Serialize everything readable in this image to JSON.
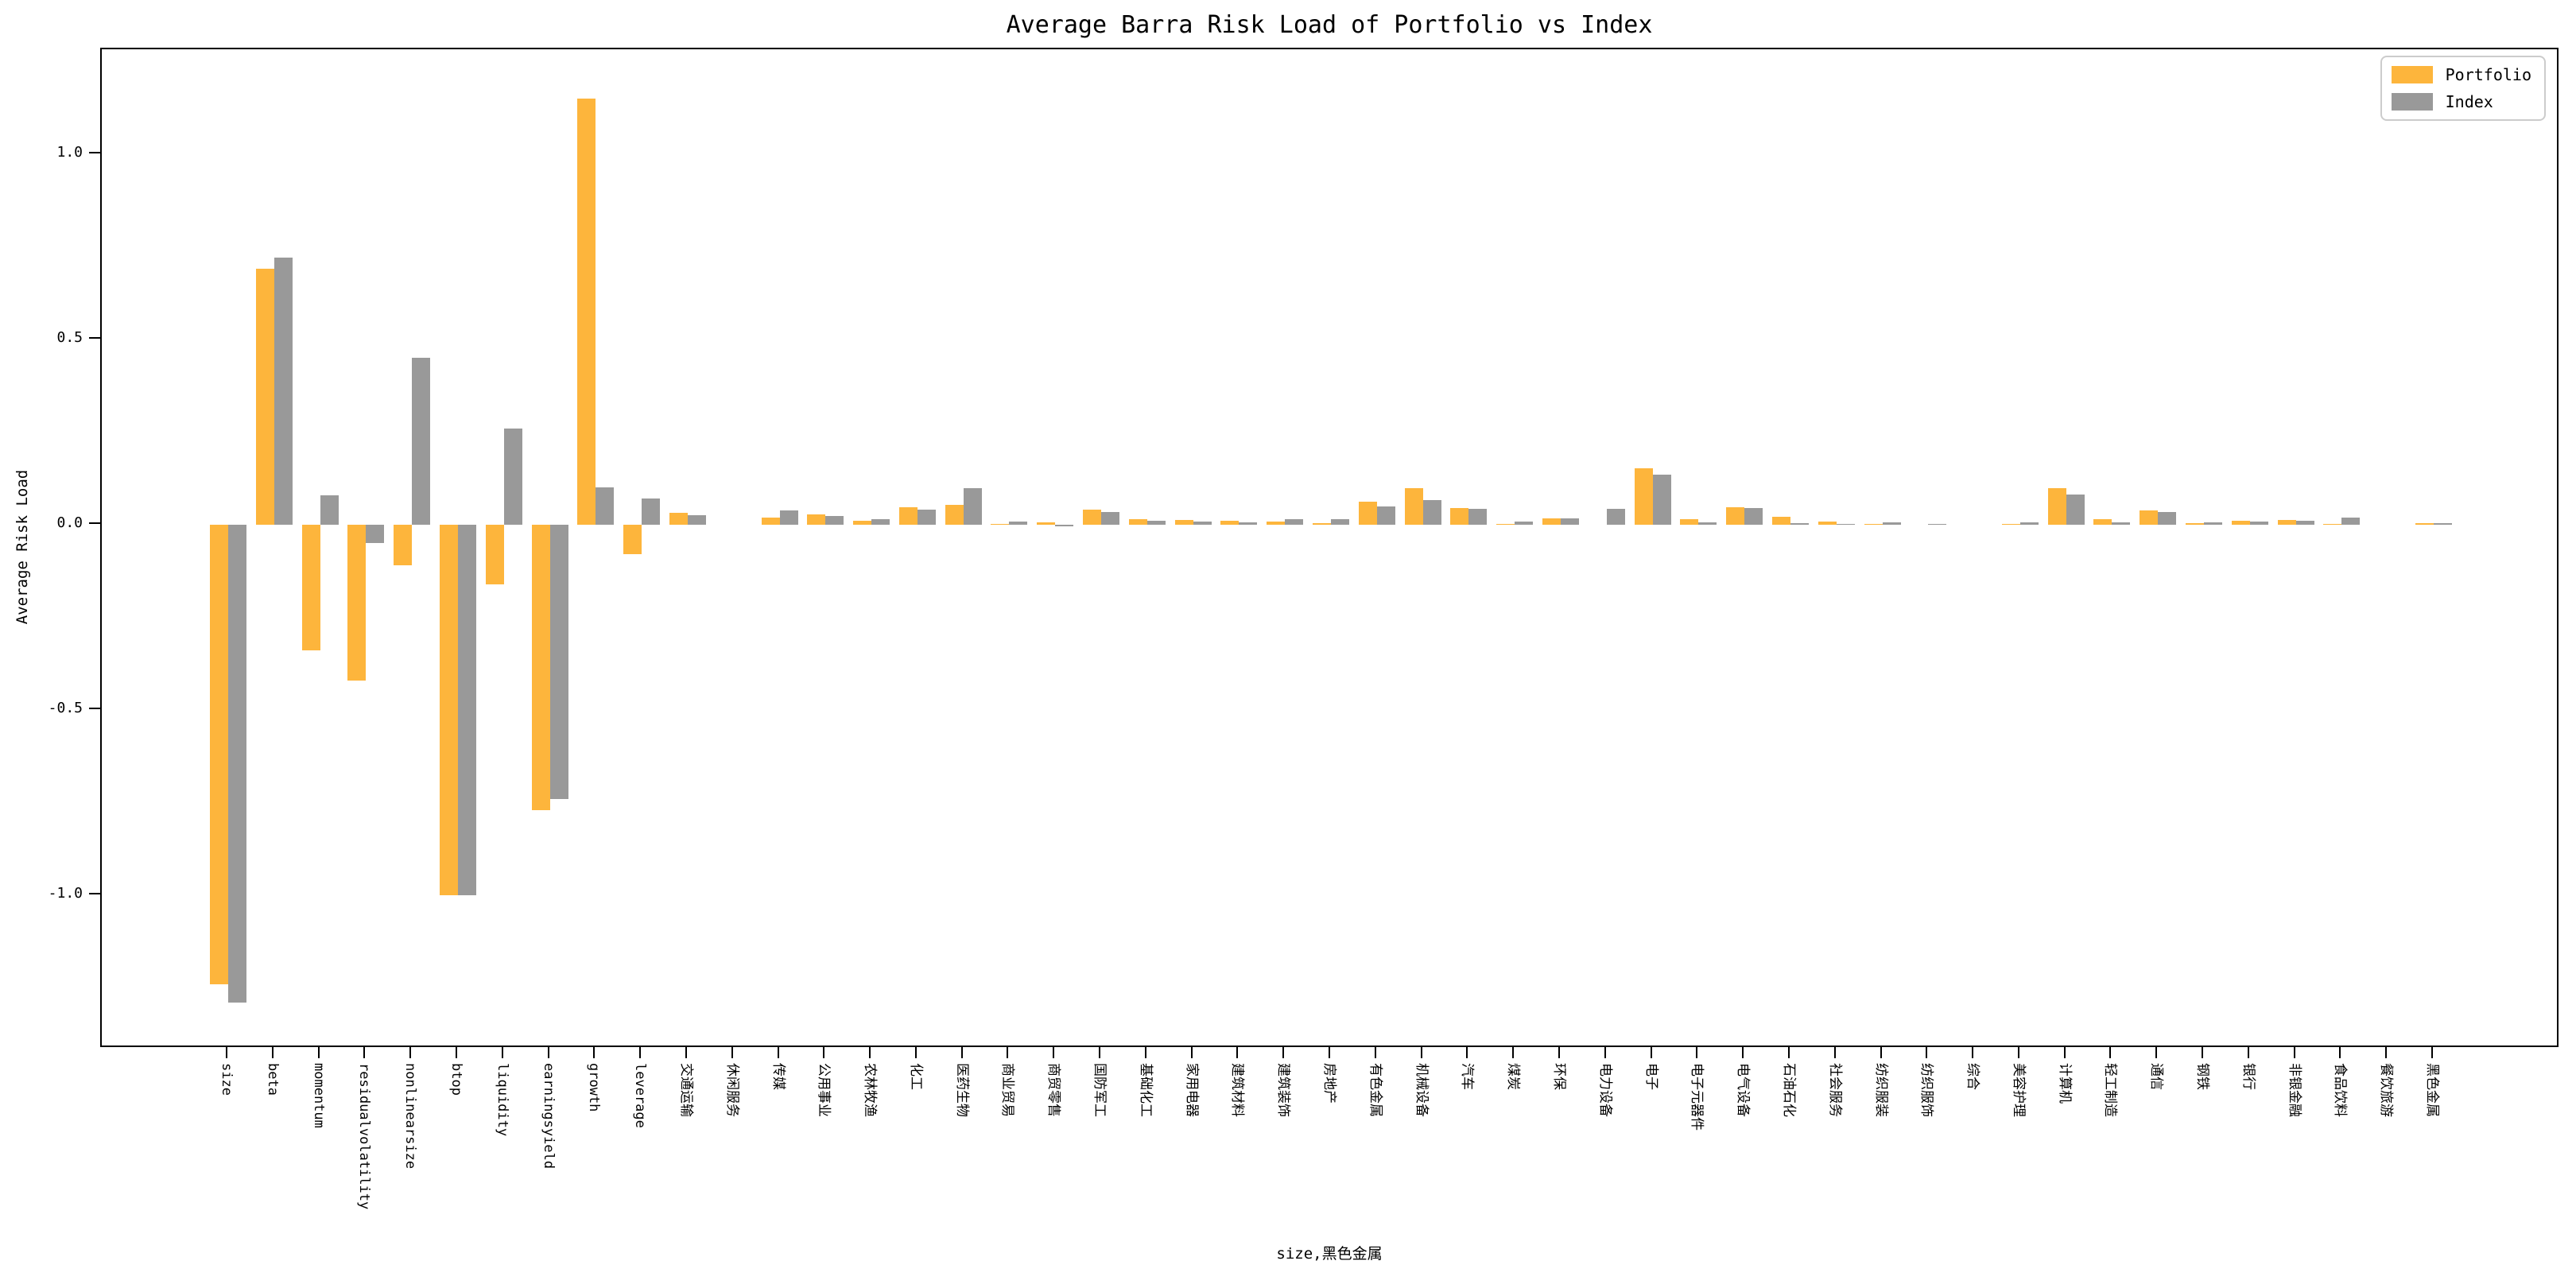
{
  "chart_data": {
    "type": "bar",
    "title": "Average Barra Risk Load of Portfolio vs Index",
    "ylabel": "Average Risk Load",
    "xlabel": "size,黑色金属",
    "ylim": [
      -1.41,
      1.28
    ],
    "yticks": [
      1.0,
      0.5,
      0.0,
      -0.5,
      -1.0
    ],
    "grid": false,
    "legend_position": "upper right",
    "colors": {
      "portfolio": "#FDB53C",
      "index": "#999999",
      "axis": "#000000",
      "legend_border": "#cccccc"
    },
    "categories": [
      "size",
      "beta",
      "momentum",
      "residualvolatility",
      "nonlinearsize",
      "btop",
      "liquidity",
      "earningsyield",
      "growth",
      "leverage",
      "交通运输",
      "休闲服务",
      "传媒",
      "公用事业",
      "农林牧渔",
      "化工",
      "医药生物",
      "商业贸易",
      "商贸零售",
      "国防军工",
      "基础化工",
      "家用电器",
      "建筑材料",
      "建筑装饰",
      "房地产",
      "有色金属",
      "机械设备",
      "汽车",
      "煤炭",
      "环保",
      "电力设备",
      "电子",
      "电子元器件",
      "电气设备",
      "石油石化",
      "社会服务",
      "纺织服装",
      "纺织服饰",
      "综合",
      "美容护理",
      "计算机",
      "轻工制造",
      "通信",
      "钢铁",
      "银行",
      "非银金融",
      "食品饮料",
      "餐饮旅游",
      "黑色金属"
    ],
    "series": [
      {
        "name": "Portfolio",
        "values": [
          -1.24,
          0.69,
          -0.34,
          -0.42,
          -0.11,
          -1.0,
          -0.16,
          -0.77,
          1.15,
          -0.08,
          0.032,
          0.0,
          0.019,
          0.028,
          0.011,
          0.048,
          0.053,
          0.003,
          0.007,
          0.041,
          0.014,
          0.013,
          0.011,
          0.008,
          0.004,
          0.062,
          0.098,
          0.046,
          0.003,
          0.018,
          0.0,
          0.152,
          0.016,
          0.048,
          0.021,
          0.009,
          0.002,
          0.0,
          0.0,
          0.002,
          0.099,
          0.014,
          0.038,
          0.004,
          0.011,
          0.012,
          0.003,
          0.0,
          0.004
        ]
      },
      {
        "name": "Index",
        "values": [
          -1.29,
          0.72,
          0.08,
          -0.05,
          0.45,
          -1.0,
          0.26,
          -0.74,
          0.1,
          0.07,
          0.026,
          0.0,
          0.039,
          0.023,
          0.015,
          0.041,
          0.099,
          0.009,
          -0.004,
          0.034,
          0.01,
          0.008,
          0.006,
          0.016,
          0.016,
          0.049,
          0.066,
          0.042,
          0.008,
          0.018,
          0.042,
          0.136,
          0.007,
          0.046,
          0.004,
          0.003,
          0.006,
          0.003,
          0.0,
          0.006,
          0.081,
          0.007,
          0.034,
          0.007,
          0.008,
          0.01,
          0.02,
          0.0,
          0.005
        ]
      }
    ]
  }
}
